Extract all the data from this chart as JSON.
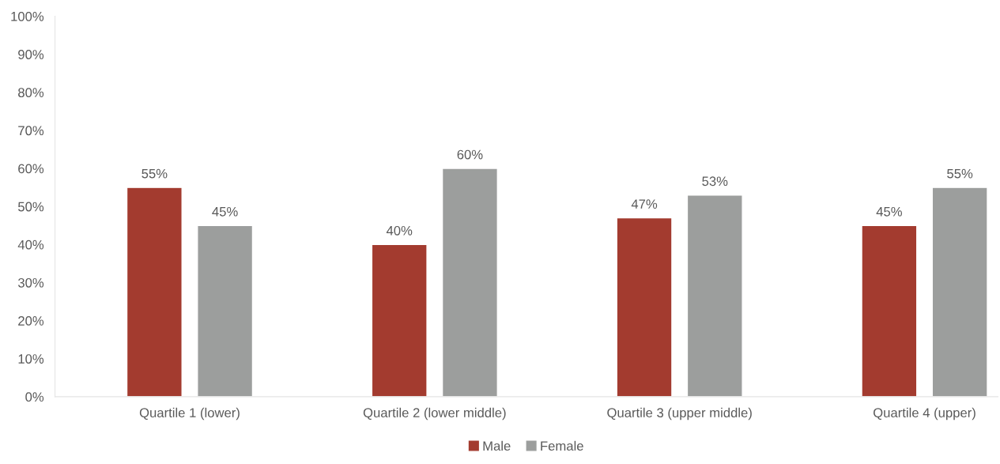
{
  "chart_data": {
    "type": "bar",
    "categories": [
      "Quartile 1 (lower)",
      "Quartile 2 (lower middle)",
      "Quartile 3 (upper middle)",
      "Quartile 4 (upper)"
    ],
    "series": [
      {
        "name": "Male",
        "color": "#a33b2f",
        "values": [
          55,
          40,
          47,
          45
        ],
        "value_labels": [
          "55%",
          "40%",
          "47%",
          "45%"
        ]
      },
      {
        "name": "Female",
        "color": "#9c9e9d",
        "values": [
          45,
          60,
          53,
          55
        ],
        "value_labels": [
          "45%",
          "60%",
          "53%",
          "55%"
        ]
      }
    ],
    "ylim": [
      0,
      100
    ],
    "yticks": [
      {
        "value": 0,
        "label": "0%"
      },
      {
        "value": 10,
        "label": "10%"
      },
      {
        "value": 20,
        "label": "20%"
      },
      {
        "value": 30,
        "label": "30%"
      },
      {
        "value": 40,
        "label": "40%"
      },
      {
        "value": 50,
        "label": "50%"
      },
      {
        "value": 60,
        "label": "60%"
      },
      {
        "value": 70,
        "label": "70%"
      },
      {
        "value": 80,
        "label": "80%"
      },
      {
        "value": 90,
        "label": "90%"
      },
      {
        "value": 100,
        "label": "100%"
      }
    ],
    "grid": false,
    "legend": "bottom"
  }
}
